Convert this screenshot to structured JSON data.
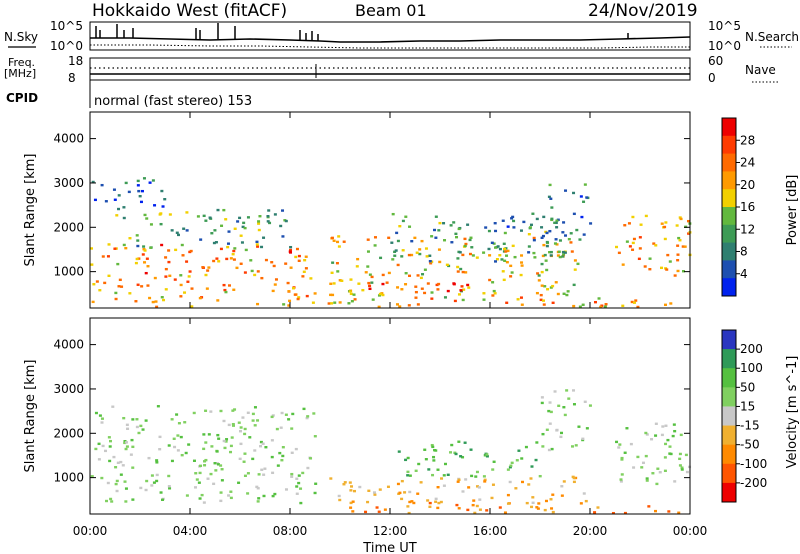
{
  "header": {
    "station": "Hokkaido West (fitACF)",
    "beam": "Beam 01",
    "date": "24/Nov/2019"
  },
  "noise_panel": {
    "left_label": "N.Sky",
    "right_label": "N.Search",
    "ticks": [
      "10^5",
      "10^0"
    ]
  },
  "freq_panel": {
    "left_label_1": "Freq.",
    "left_label_2": "[MHz]",
    "left_ticks": [
      "18",
      "8"
    ],
    "right_label": "Nave",
    "right_ticks": [
      "60",
      "0"
    ],
    "cpid_label": "CPID",
    "cpid_text": "normal (fast stereo) 153"
  },
  "chart_data": [
    {
      "type": "heatmap",
      "title": "",
      "xlabel": "Time UT",
      "ylabel": "Slant Range [km]",
      "x_ticks": [
        "00:00",
        "04:00",
        "08:00",
        "12:00",
        "16:00",
        "20:00",
        "00:00"
      ],
      "y_ticks": [
        1000,
        2000,
        3000,
        4000
      ],
      "ylim": [
        180,
        4600
      ],
      "colorbar": {
        "label": "Power [dB]",
        "ticks": [
          4,
          8,
          12,
          16,
          20,
          24,
          28
        ],
        "range": [
          0,
          32
        ],
        "colors": [
          "#0022ee",
          "#1d4fb0",
          "#2f7f70",
          "#3d9b55",
          "#62b83e",
          "#f2d000",
          "#ff9a00",
          "#ff6a00",
          "#ff3b00",
          "#ee0000"
        ]
      },
      "regions": [
        {
          "t": [
            0.0,
            9.0
          ],
          "r": [
            400,
            1600
          ],
          "v": 22
        },
        {
          "t": [
            1.0,
            8.0
          ],
          "r": [
            1500,
            2400
          ],
          "v": 12
        },
        {
          "t": [
            0.0,
            3.0
          ],
          "r": [
            2400,
            3100
          ],
          "v": 6
        },
        {
          "t": [
            9.5,
            19.5
          ],
          "r": [
            400,
            1800
          ],
          "v": 18
        },
        {
          "t": [
            10.5,
            15.5
          ],
          "r": [
            500,
            900
          ],
          "v": 26
        },
        {
          "t": [
            12.0,
            19.0
          ],
          "r": [
            1200,
            2300
          ],
          "v": 10
        },
        {
          "t": [
            18.0,
            20.0
          ],
          "r": [
            1600,
            3000
          ],
          "v": 9
        },
        {
          "t": [
            21.0,
            24.0
          ],
          "r": [
            800,
            2300
          ],
          "v": 20
        },
        {
          "t": [
            0.0,
            24.0
          ],
          "r": [
            180,
            400
          ],
          "v": 20
        }
      ]
    },
    {
      "type": "heatmap",
      "title": "",
      "xlabel": "Time UT",
      "ylabel": "Slant Range [km]",
      "x_ticks": [
        "00:00",
        "04:00",
        "08:00",
        "12:00",
        "16:00",
        "20:00",
        "00:00"
      ],
      "y_ticks": [
        1000,
        2000,
        3000,
        4000
      ],
      "ylim": [
        180,
        4600
      ],
      "colorbar": {
        "label": "Velocity [m s^-1]",
        "tick_labels": [
          "200",
          "100",
          "50",
          "15",
          "-15",
          "-50",
          "-100",
          "-200"
        ],
        "colors": [
          "#2a36c0",
          "#2f9a58",
          "#55c040",
          "#80d060",
          "#c8c8c8",
          "#f0b030",
          "#ff8a00",
          "#ff5500",
          "#ee0000"
        ]
      },
      "regions": [
        {
          "t": [
            0.0,
            9.0
          ],
          "r": [
            400,
            2600
          ],
          "v": "15"
        },
        {
          "t": [
            9.5,
            20.0
          ],
          "r": [
            400,
            1000
          ],
          "v": "-50"
        },
        {
          "t": [
            12.0,
            18.0
          ],
          "r": [
            1000,
            1800
          ],
          "v": "50"
        },
        {
          "t": [
            18.0,
            20.0
          ],
          "r": [
            1600,
            3000
          ],
          "v": "15"
        },
        {
          "t": [
            21.0,
            24.0
          ],
          "r": [
            800,
            2300
          ],
          "v": "15"
        },
        {
          "t": [
            10.0,
            24.0
          ],
          "r": [
            180,
            450
          ],
          "v": "-100"
        }
      ]
    }
  ]
}
